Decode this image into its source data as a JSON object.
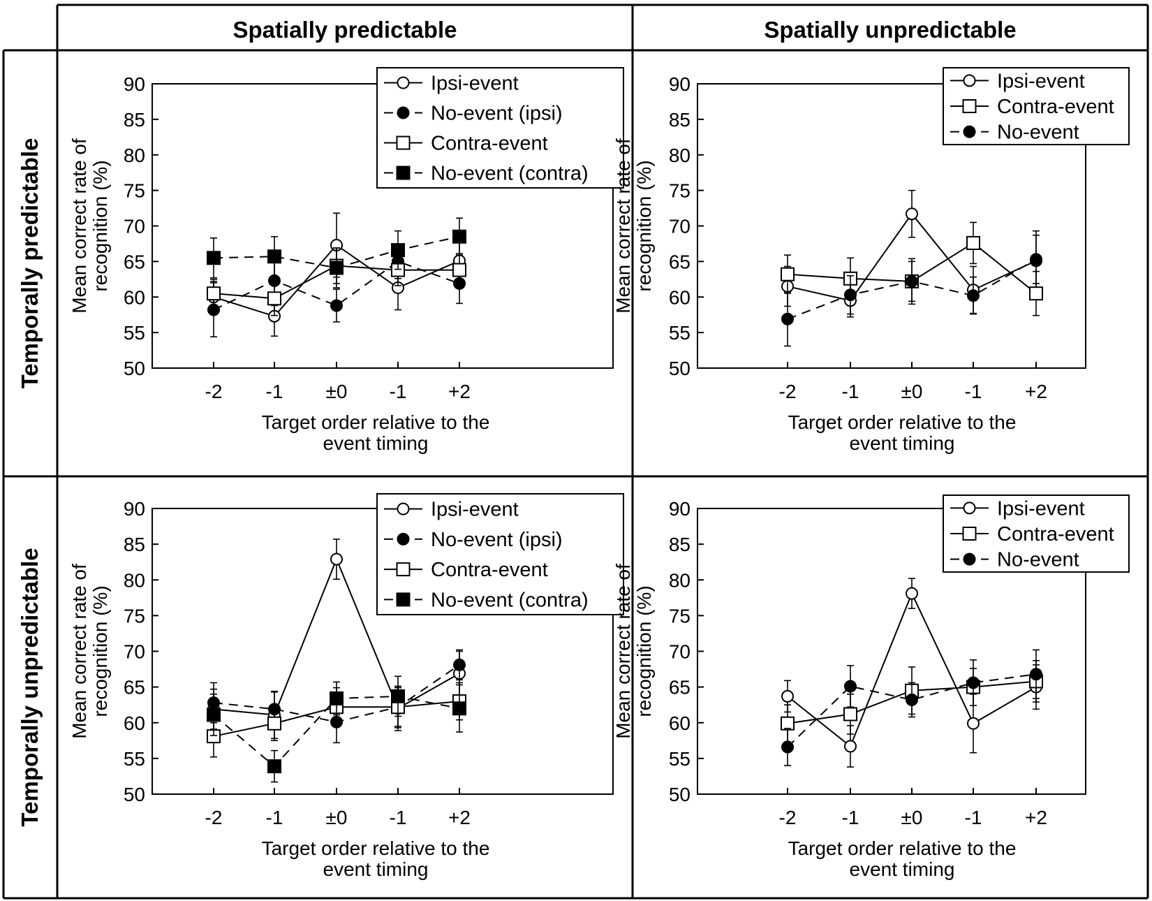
{
  "figure": {
    "column_headers": [
      "Spatially predictable",
      "Spatially unpredictable"
    ],
    "row_headers": [
      "Temporally predictable",
      "Temporally unpredictable"
    ]
  },
  "chart_data": [
    {
      "type": "line",
      "panel": "temporally-predictable / spatially-predictable",
      "categories": [
        "-2",
        "-1",
        "±0",
        "-1",
        "+2"
      ],
      "xlabel": "Target order relative to the event timing",
      "ylabel": "Mean correct rate of recognition (%)",
      "ylim": [
        50,
        90
      ],
      "yticks": [
        50,
        55,
        60,
        65,
        70,
        75,
        80,
        85,
        90
      ],
      "legend_position": "top-right",
      "series": [
        {
          "name": "Ipsi-event",
          "marker": "open-circle",
          "line": "solid",
          "values": [
            60.0,
            57.3,
            67.3,
            61.3,
            65.1
          ],
          "errors": [
            2.2,
            2.8,
            4.5,
            3.1,
            3.2
          ]
        },
        {
          "name": "No-event (ipsi)",
          "marker": "filled-circle",
          "line": "dashed",
          "values": [
            58.2,
            62.3,
            58.8,
            65.0,
            61.9
          ],
          "errors": [
            3.8,
            3.5,
            2.3,
            2.4,
            2.8
          ]
        },
        {
          "name": "Contra-event",
          "marker": "open-square",
          "line": "solid",
          "values": [
            60.5,
            59.8,
            64.4,
            63.8,
            63.8
          ],
          "errors": [
            2.0,
            2.4,
            2.5,
            2.2,
            2.3
          ]
        },
        {
          "name": "No-event (contra)",
          "marker": "filled-square",
          "line": "dashed",
          "values": [
            65.5,
            65.7,
            64.1,
            66.6,
            68.5
          ],
          "errors": [
            2.8,
            2.8,
            2.8,
            2.7,
            2.6
          ]
        }
      ]
    },
    {
      "type": "line",
      "panel": "temporally-predictable / spatially-unpredictable",
      "categories": [
        "-2",
        "-1",
        "±0",
        "-1",
        "+2"
      ],
      "xlabel": "Target order relative to the event timing",
      "ylabel": "Mean correct rate of recognition (%)",
      "ylim": [
        50,
        90
      ],
      "yticks": [
        50,
        55,
        60,
        65,
        70,
        75,
        80,
        85,
        90
      ],
      "legend_position": "top-right",
      "series": [
        {
          "name": "Ipsi-event",
          "marker": "open-circle",
          "line": "solid",
          "values": [
            61.5,
            59.5,
            71.7,
            61.0,
            65.1
          ],
          "errors": [
            2.8,
            2.3,
            3.3,
            3.3,
            4.2
          ]
        },
        {
          "name": "Contra-event",
          "marker": "open-square",
          "line": "solid",
          "values": [
            63.2,
            62.6,
            62.2,
            67.6,
            60.5
          ],
          "errors": [
            2.7,
            2.9,
            2.8,
            2.9,
            3.1
          ]
        },
        {
          "name": "No-event",
          "marker": "filled-circle",
          "line": "dashed",
          "values": [
            56.9,
            60.3,
            62.2,
            60.2,
            65.3
          ],
          "errors": [
            3.8,
            2.7,
            3.2,
            2.6,
            3.4
          ]
        }
      ]
    },
    {
      "type": "line",
      "panel": "temporally-unpredictable / spatially-predictable",
      "categories": [
        "-2",
        "-1",
        "±0",
        "-1",
        "+2"
      ],
      "xlabel": "Target order relative to the event timing",
      "ylabel": "Mean correct rate of recognition (%)",
      "ylim": [
        50,
        90
      ],
      "yticks": [
        50,
        55,
        60,
        65,
        70,
        75,
        80,
        85,
        90
      ],
      "legend_position": "top-right",
      "series": [
        {
          "name": "Ipsi-event",
          "marker": "open-circle",
          "line": "solid",
          "values": [
            61.9,
            61.1,
            82.9,
            62.0,
            66.9
          ],
          "errors": [
            2.8,
            3.3,
            2.8,
            3.1,
            3.1
          ]
        },
        {
          "name": "No-event (ipsi)",
          "marker": "filled-circle",
          "line": "dashed",
          "values": [
            62.8,
            61.9,
            60.1,
            62.2,
            68.1
          ],
          "errors": [
            2.8,
            2.4,
            2.9,
            2.7,
            2.1
          ]
        },
        {
          "name": "Contra-event",
          "marker": "open-square",
          "line": "solid",
          "values": [
            58.1,
            59.9,
            62.2,
            62.2,
            63.0
          ],
          "errors": [
            2.9,
            2.4,
            2.7,
            2.9,
            2.6
          ]
        },
        {
          "name": "No-event (contra)",
          "marker": "filled-square",
          "line": "dashed",
          "values": [
            61.1,
            53.9,
            63.4,
            63.7,
            62.0
          ],
          "errors": [
            2.9,
            2.2,
            2.3,
            2.8,
            3.3
          ]
        }
      ]
    },
    {
      "type": "line",
      "panel": "temporally-unpredictable / spatially-unpredictable",
      "categories": [
        "-2",
        "-1",
        "±0",
        "-1",
        "+2"
      ],
      "xlabel": "Target order relative to the event timing",
      "ylabel": "Mean correct rate of recognition (%)",
      "ylim": [
        50,
        90
      ],
      "yticks": [
        50,
        55,
        60,
        65,
        70,
        75,
        80,
        85,
        90
      ],
      "legend_position": "top-right",
      "series": [
        {
          "name": "Ipsi-event",
          "marker": "open-circle",
          "line": "solid",
          "values": [
            63.7,
            56.7,
            78.1,
            59.9,
            65.0
          ],
          "errors": [
            2.2,
            2.9,
            2.1,
            4.1,
            3.1
          ]
        },
        {
          "name": "Contra-event",
          "marker": "open-square",
          "line": "solid",
          "values": [
            59.9,
            61.2,
            64.5,
            65.0,
            65.8
          ],
          "errors": [
            2.6,
            2.8,
            3.3,
            2.6,
            2.9
          ]
        },
        {
          "name": "No-event",
          "marker": "filled-circle",
          "line": "dashed",
          "values": [
            56.6,
            65.1,
            63.2,
            65.6,
            66.8
          ],
          "errors": [
            2.6,
            2.9,
            2.4,
            3.2,
            3.4
          ]
        }
      ]
    }
  ]
}
